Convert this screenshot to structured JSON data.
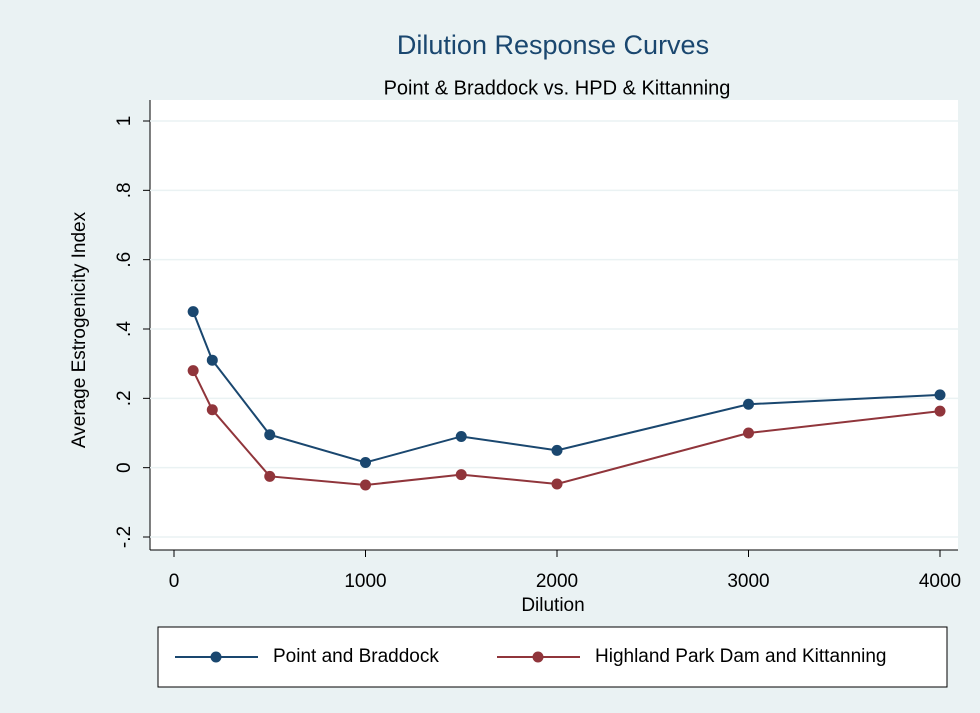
{
  "chart_data": {
    "type": "line",
    "title": "Dilution Response Curves",
    "subtitle": "Point & Braddock vs. HPD & Kittanning",
    "x_label": "Dilution",
    "y_label": "Average Estrogenicity Index",
    "x": [
      100,
      200,
      500,
      1000,
      1500,
      2000,
      3000,
      4000
    ],
    "series": [
      {
        "name": "Point and Braddock",
        "color": "#1a476f",
        "values": [
          0.45,
          0.31,
          0.095,
          0.015,
          0.09,
          0.05,
          0.183,
          0.21
        ]
      },
      {
        "name": "Highland Park Dam and Kittanning",
        "color": "#90353b",
        "values": [
          0.28,
          0.167,
          -0.025,
          -0.05,
          -0.02,
          -0.047,
          0.1,
          0.163
        ]
      }
    ],
    "xlim": [
      0,
      4000
    ],
    "xticks": [
      0,
      1000,
      2000,
      3000,
      4000
    ],
    "ylim": [
      -0.2,
      1
    ],
    "yticks": [
      {
        "value": -0.2,
        "label": "-.2"
      },
      0,
      {
        "value": 0.2,
        "label": ".2"
      },
      {
        "value": 0.4,
        "label": ".4"
      },
      {
        "value": 0.6,
        "label": ".6"
      },
      {
        "value": 0.8,
        "label": ".8"
      },
      1
    ],
    "grid": true,
    "legend": "bottom"
  }
}
